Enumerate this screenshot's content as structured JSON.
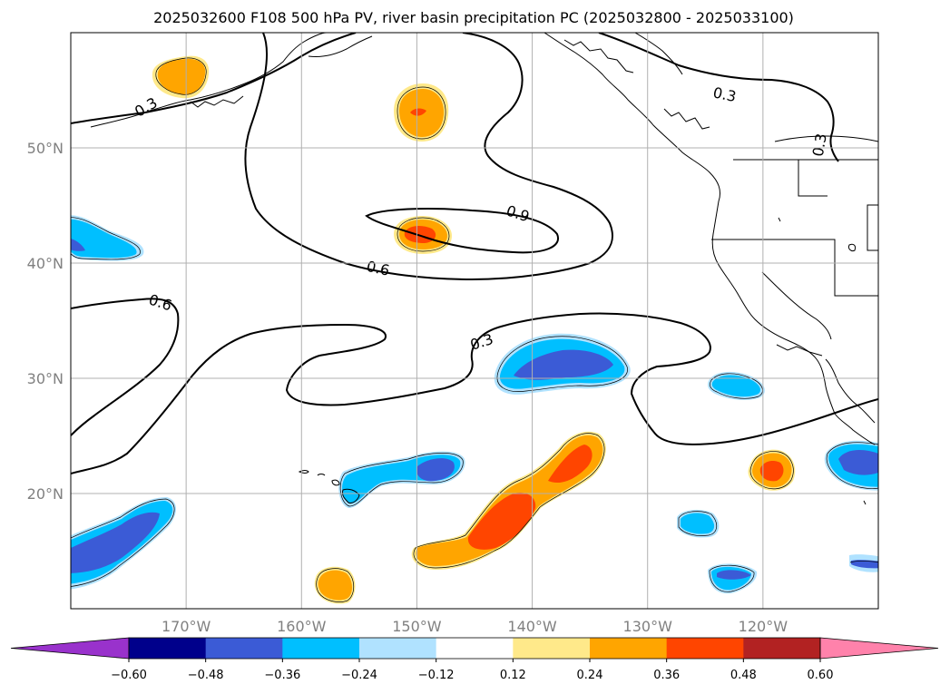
{
  "chart_data": {
    "type": "heatmap",
    "title": "2025032600 F108 500 hPa PV, river basin precipitation PC (2025032800 - 2025033100)",
    "map": {
      "lon_range": [
        -180,
        -110
      ],
      "lat_range": [
        10,
        60
      ],
      "grid": true,
      "lat_ticks": [
        {
          "value": 20,
          "label": "20°N"
        },
        {
          "value": 30,
          "label": "30°N"
        },
        {
          "value": 40,
          "label": "40°N"
        },
        {
          "value": 50,
          "label": "50°N"
        }
      ],
      "lon_ticks": [
        {
          "value": -170,
          "label": "170°W"
        },
        {
          "value": -160,
          "label": "160°W"
        },
        {
          "value": -150,
          "label": "150°W"
        },
        {
          "value": -140,
          "label": "140°W"
        },
        {
          "value": -130,
          "label": "130°W"
        },
        {
          "value": -120,
          "label": "120°W"
        }
      ]
    },
    "pv_contour_labels": [
      "0.3",
      "0.3",
      "0.3",
      "0.3",
      "0.6",
      "0.6",
      "0.9"
    ],
    "colorbar": {
      "levels": [
        -0.6,
        -0.48,
        -0.36,
        -0.24,
        -0.12,
        0.12,
        0.24,
        0.36,
        0.48,
        0.6
      ],
      "tick_labels": [
        "−0.60",
        "−0.48",
        "−0.36",
        "−0.24",
        "−0.12",
        "0.12",
        "0.24",
        "0.36",
        "0.48",
        "0.60"
      ],
      "colors": [
        "#9932cc",
        "#00008b",
        "#3b5bd6",
        "#00bfff",
        "#b0e2ff",
        "#ffffff",
        "#ffe98a",
        "#ffa500",
        "#ff4500",
        "#b22222",
        "#ff82ab"
      ],
      "extend": "both"
    },
    "precip_blobs": [
      {
        "lon": -172.5,
        "lat": 56.5,
        "sign": "positive",
        "max_level": 0.24
      },
      {
        "lon": -150,
        "lat": 53,
        "sign": "positive",
        "max_level": 0.36
      },
      {
        "lon": -149.5,
        "lat": 42.5,
        "sign": "positive",
        "max_level": 0.36
      },
      {
        "lon": -177,
        "lat": 41.5,
        "sign": "negative",
        "max_level": -0.24
      },
      {
        "lon": -140,
        "lat": 31.5,
        "sign": "negative",
        "max_level": -0.36
      },
      {
        "lon": -125,
        "lat": 29.5,
        "sign": "negative",
        "max_level": -0.24
      },
      {
        "lon": -150,
        "lat": 21.5,
        "sign": "negative",
        "max_level": -0.36
      },
      {
        "lon": -143.5,
        "lat": 19,
        "sign": "positive",
        "max_level": 0.36
      },
      {
        "lon": -136,
        "lat": 23,
        "sign": "positive",
        "max_level": 0.36
      },
      {
        "lon": -119.5,
        "lat": 22,
        "sign": "positive",
        "max_level": 0.36
      },
      {
        "lon": -112.5,
        "lat": 22.5,
        "sign": "negative",
        "max_level": -0.36
      },
      {
        "lon": -174.5,
        "lat": 15.5,
        "sign": "negative",
        "max_level": -0.36
      },
      {
        "lon": -156.5,
        "lat": 12,
        "sign": "positive",
        "max_level": 0.24
      },
      {
        "lon": -126.5,
        "lat": 17.5,
        "sign": "negative",
        "max_level": -0.24
      },
      {
        "lon": -124,
        "lat": 13,
        "sign": "negative",
        "max_level": -0.24
      },
      {
        "lon": -112,
        "lat": 14,
        "sign": "negative",
        "max_level": -0.24
      }
    ]
  }
}
